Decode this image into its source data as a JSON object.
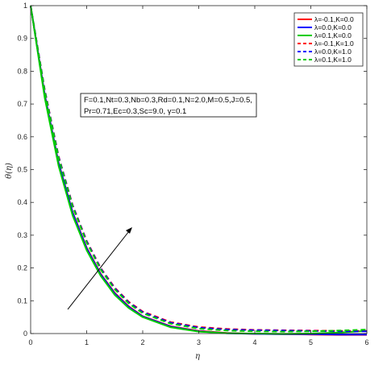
{
  "chart_data": {
    "type": "line",
    "xlabel": "η",
    "ylabel": "θ(η)",
    "xlim": [
      0,
      6
    ],
    "ylim": [
      0,
      1
    ],
    "xticks": [
      "0",
      "1",
      "2",
      "3",
      "4",
      "5",
      "6"
    ],
    "yticks": [
      "0",
      "0.1",
      "0.2",
      "0.3",
      "0.4",
      "0.5",
      "0.6",
      "0.7",
      "0.8",
      "0.9",
      "1"
    ],
    "grid": false,
    "legend_position": "top-right",
    "annotation_lines": [
      "F=0.1,Nt=0.3,Nb=0.3,Rd=0.1,N=2.0,M=0.5,J=0.5,",
      "Pr=0.71,Ec=0.3,Sc=9.0, γ=0.1"
    ],
    "x": [
      0,
      0.25,
      0.5,
      0.75,
      1.0,
      1.25,
      1.5,
      1.75,
      2.0,
      2.5,
      3.0,
      3.5,
      4.0,
      4.5,
      5.0,
      5.5,
      6.0
    ],
    "series": [
      {
        "name": "λ=-0.1,K=0.0",
        "color": "#ff0000",
        "dash": false,
        "values": [
          1.0,
          0.73,
          0.52,
          0.37,
          0.262,
          0.182,
          0.124,
          0.083,
          0.053,
          0.022,
          0.008,
          0.002,
          -0.001,
          -0.002,
          -0.003,
          -0.004,
          -0.004
        ]
      },
      {
        "name": "λ=0.0,K=0.0",
        "color": "#0000ff",
        "dash": false,
        "values": [
          1.0,
          0.728,
          0.518,
          0.368,
          0.26,
          0.18,
          0.122,
          0.081,
          0.052,
          0.021,
          0.007,
          0.001,
          -0.001,
          -0.002,
          -0.002,
          -0.003,
          -0.003
        ]
      },
      {
        "name": "λ=0.1,K=0.0",
        "color": "#00cc00",
        "dash": false,
        "values": [
          1.0,
          0.72,
          0.51,
          0.36,
          0.254,
          0.176,
          0.118,
          0.078,
          0.05,
          0.019,
          0.006,
          0.001,
          0.0,
          -0.001,
          0.0,
          0.003,
          0.008
        ]
      },
      {
        "name": "λ=-0.1,K=1.0",
        "color": "#ff0000",
        "dash": true,
        "values": [
          1.0,
          0.745,
          0.54,
          0.392,
          0.283,
          0.2,
          0.14,
          0.097,
          0.067,
          0.035,
          0.02,
          0.014,
          0.011,
          0.01,
          0.009,
          0.008,
          0.008
        ]
      },
      {
        "name": "λ=0.0,K=1.0",
        "color": "#0000ff",
        "dash": true,
        "values": [
          1.0,
          0.743,
          0.538,
          0.39,
          0.281,
          0.198,
          0.138,
          0.095,
          0.065,
          0.033,
          0.018,
          0.012,
          0.01,
          0.009,
          0.008,
          0.007,
          0.007
        ]
      },
      {
        "name": "λ=0.1,K=1.0",
        "color": "#00cc00",
        "dash": true,
        "values": [
          1.0,
          0.74,
          0.535,
          0.387,
          0.278,
          0.195,
          0.135,
          0.092,
          0.062,
          0.03,
          0.015,
          0.009,
          0.007,
          0.006,
          0.007,
          0.009,
          0.012
        ]
      }
    ]
  }
}
